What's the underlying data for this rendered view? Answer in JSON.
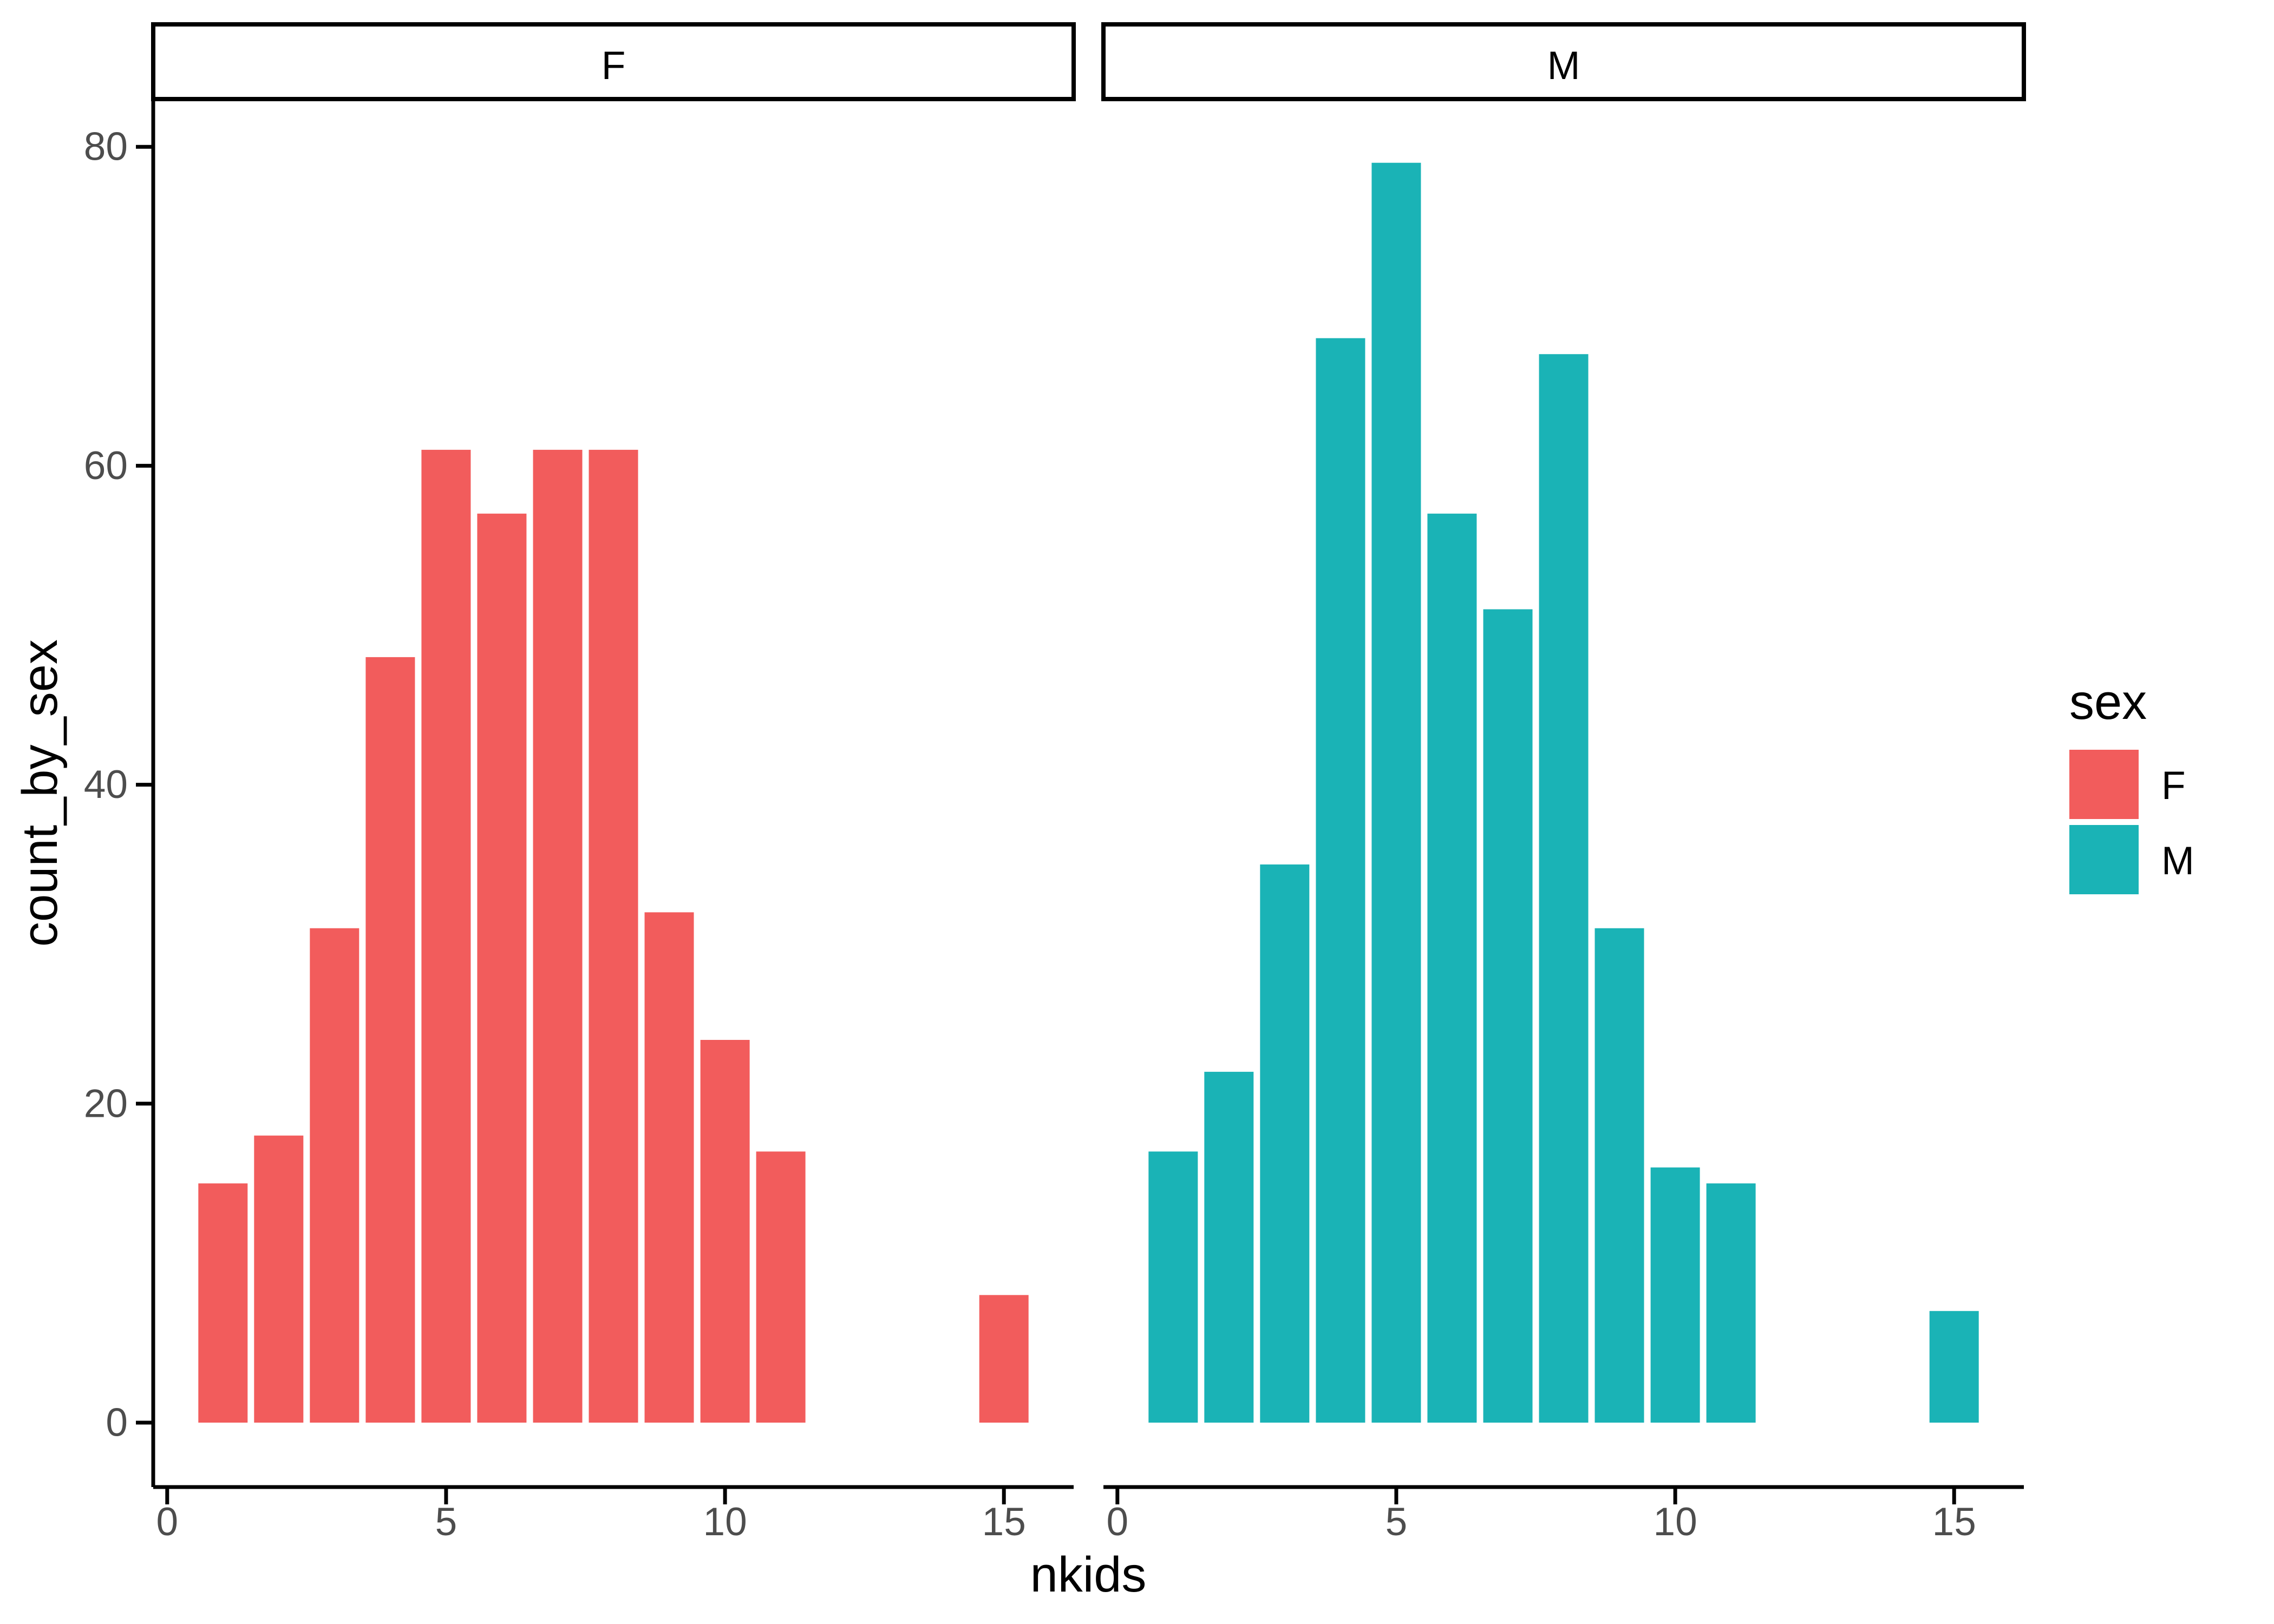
{
  "chart_data": {
    "type": "bar",
    "subtype": "faceted_histogram",
    "title": "",
    "xlabel": "nkids",
    "ylabel": "count_by_sex",
    "grid": false,
    "bin_width": 1,
    "xlim": [
      -0.25,
      16.25
    ],
    "ylim": [
      -3.95,
      82.95
    ],
    "x_ticks": [
      0,
      5,
      10,
      15
    ],
    "y_ticks": [
      0,
      20,
      40,
      60,
      80
    ],
    "x_tick_labels": [
      "0",
      "5",
      "10",
      "15"
    ],
    "y_tick_labels": [
      "0",
      "20",
      "40",
      "60",
      "80"
    ],
    "legend": {
      "title": "sex",
      "position": "right",
      "entries": [
        {
          "label": "F",
          "color": "#F25C5C"
        },
        {
          "label": "M",
          "color": "#1AB3B6"
        }
      ]
    },
    "facets": [
      {
        "label": "F",
        "series": "F",
        "color": "#F25C5C",
        "x": [
          1,
          2,
          3,
          4,
          5,
          6,
          7,
          8,
          9,
          10,
          11,
          15
        ],
        "counts": [
          15,
          18,
          31,
          48,
          61,
          57,
          61,
          61,
          32,
          24,
          17,
          8
        ]
      },
      {
        "label": "M",
        "series": "M",
        "color": "#1AB3B6",
        "x": [
          1,
          2,
          3,
          4,
          5,
          6,
          7,
          8,
          9,
          10,
          11,
          15
        ],
        "counts": [
          17,
          22,
          35,
          68,
          79,
          57,
          51,
          67,
          31,
          16,
          15,
          7
        ]
      }
    ]
  },
  "style": {
    "axis_text_color": "#4D4D4D",
    "axis_line_color": "#000000",
    "strip_border_color": "#000000",
    "strip_fill": "#FFFFFF",
    "background": "#FFFFFF"
  }
}
